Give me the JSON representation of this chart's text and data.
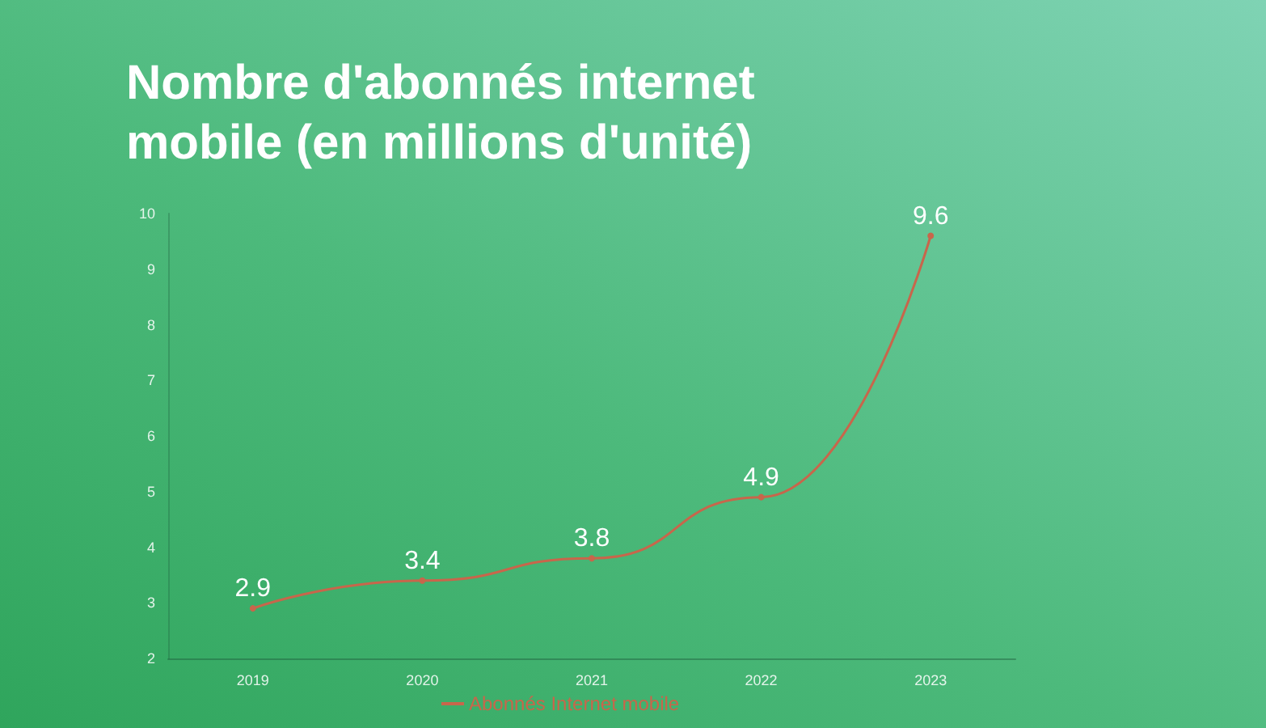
{
  "chart_data": {
    "type": "line",
    "title": "Nombre d'abonnés internet mobile (en millions d'unité)",
    "categories": [
      "2019",
      "2020",
      "2021",
      "2022",
      "2023"
    ],
    "series": [
      {
        "name": "Abonnés Internet mobile",
        "color": "#c8664b",
        "values": [
          2.9,
          3.4,
          3.8,
          4.9,
          9.6
        ]
      }
    ],
    "ylim": [
      2,
      10
    ],
    "yticks": [
      2,
      3,
      4,
      5,
      6,
      7,
      8,
      9,
      10
    ],
    "grid": false,
    "legend": "bottom",
    "marker": "circle",
    "line_style": "solid",
    "data_labels": true
  }
}
